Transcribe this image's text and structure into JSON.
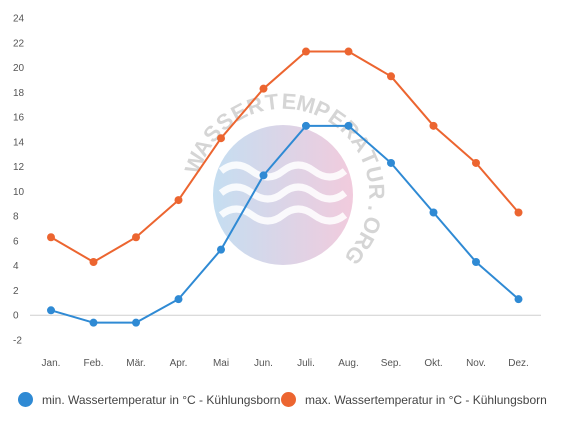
{
  "chart_data": {
    "type": "line",
    "categories": [
      "Jan.",
      "Feb.",
      "Mär.",
      "Apr.",
      "Mai",
      "Jun.",
      "Juli.",
      "Aug.",
      "Sep.",
      "Okt.",
      "Nov.",
      "Dez."
    ],
    "series": [
      {
        "name": "min. Wassertemperatur in °C - Kühlungsborn",
        "color": "#2f8ad4",
        "values": [
          0.4,
          -0.6,
          -0.6,
          1.3,
          5.3,
          11.3,
          15.3,
          15.3,
          12.3,
          8.3,
          4.3,
          1.3
        ]
      },
      {
        "name": "max. Wassertemperatur in °C - Kühlungsborn",
        "color": "#ec6530",
        "values": [
          6.3,
          4.3,
          6.3,
          9.3,
          14.3,
          18.3,
          21.3,
          21.3,
          19.3,
          15.3,
          12.3,
          8.3
        ]
      }
    ],
    "ylim": [
      -2,
      24
    ],
    "yticks": [
      "-2",
      "0",
      "2",
      "4",
      "6",
      "8",
      "10",
      "12",
      "14",
      "16",
      "18",
      "20",
      "22",
      "24"
    ],
    "grid": false,
    "legend_position": "bottom",
    "watermark": "WASSERTEMPERATUR.ORG"
  }
}
